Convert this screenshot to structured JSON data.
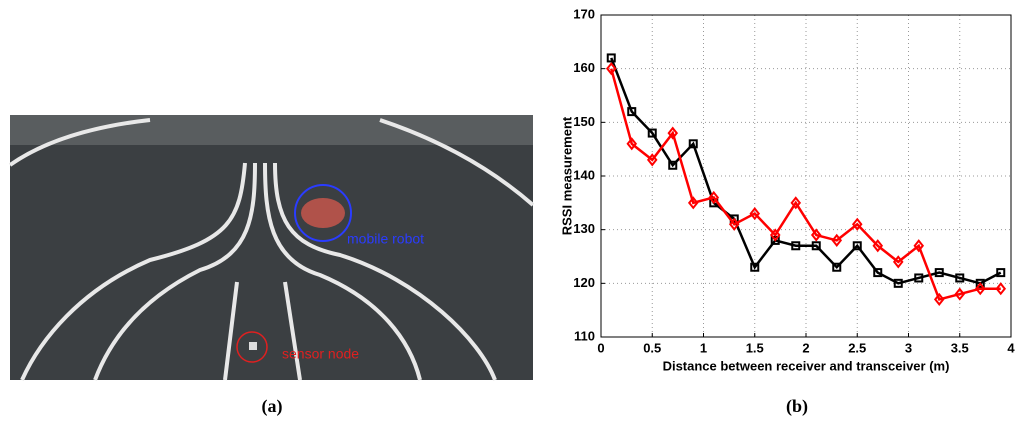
{
  "photo": {
    "annotations": [
      "mobile robot",
      "sensor node"
    ],
    "caption": "(a)"
  },
  "chart_data": {
    "type": "line",
    "caption": "(b)",
    "xlabel": "Distance between receiver and transceiver (m)",
    "ylabel": "RSSI measurement",
    "x": [
      0.1,
      0.3,
      0.5,
      0.7,
      0.9,
      1.1,
      1.3,
      1.5,
      1.7,
      1.9,
      2.1,
      2.3,
      2.5,
      2.7,
      2.9,
      3.1,
      3.3,
      3.5,
      3.7,
      3.9
    ],
    "series": [
      {
        "color": "#000000",
        "marker": "square",
        "values": [
          162,
          152,
          148,
          142,
          146,
          135,
          132,
          123,
          128,
          127,
          127,
          123,
          127,
          122,
          120,
          121,
          122,
          121,
          120,
          122
        ]
      },
      {
        "color": "#ff0000",
        "marker": "diamond",
        "values": [
          160,
          146,
          143,
          148,
          135,
          136,
          131,
          133,
          129,
          135,
          129,
          128,
          131,
          127,
          124,
          127,
          117,
          118,
          119,
          119
        ]
      }
    ],
    "xlim": [
      0,
      4
    ],
    "xticks": [
      0,
      0.5,
      1,
      1.5,
      2,
      2.5,
      3,
      3.5,
      4
    ],
    "ylim": [
      110,
      170
    ],
    "yticks": [
      110,
      120,
      130,
      140,
      150,
      160,
      170
    ],
    "grid": true
  }
}
